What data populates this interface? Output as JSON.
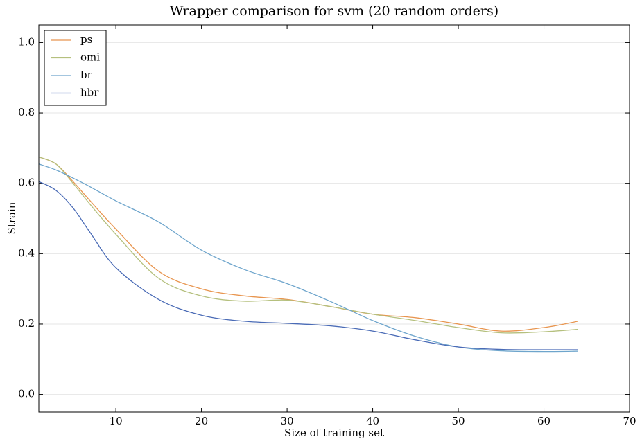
{
  "chart_data": {
    "type": "line",
    "title": "Wrapper comparison for svm (20 random orders)",
    "x_label": "Size of training set",
    "y_label": "Strain",
    "x": [
      1,
      3,
      5,
      7,
      10,
      15,
      20,
      25,
      30,
      35,
      40,
      45,
      50,
      55,
      60,
      64
    ],
    "series": [
      {
        "name": "ps",
        "color": "#e8954f",
        "values": [
          0.675,
          0.655,
          0.605,
          0.55,
          0.47,
          0.35,
          0.3,
          0.28,
          0.27,
          0.25,
          0.228,
          0.218,
          0.2,
          0.18,
          0.19,
          0.208
        ]
      },
      {
        "name": "omi",
        "color": "#b5c07e",
        "values": [
          0.675,
          0.655,
          0.6,
          0.54,
          0.455,
          0.33,
          0.28,
          0.265,
          0.268,
          0.25,
          0.228,
          0.21,
          0.19,
          0.175,
          0.178,
          0.185
        ]
      },
      {
        "name": "br",
        "color": "#6ea5cc",
        "values": [
          0.655,
          0.638,
          0.615,
          0.59,
          0.55,
          0.49,
          0.41,
          0.355,
          0.315,
          0.265,
          0.21,
          0.165,
          0.135,
          0.124,
          0.122,
          0.123
        ]
      },
      {
        "name": "hbr",
        "color": "#4a6bb6",
        "values": [
          0.605,
          0.58,
          0.53,
          0.46,
          0.36,
          0.27,
          0.225,
          0.208,
          0.202,
          0.195,
          0.18,
          0.155,
          0.135,
          0.128,
          0.127,
          0.127
        ]
      }
    ],
    "xlim": [
      1,
      70
    ],
    "ylim": [
      -0.05,
      1.05
    ],
    "xticks": [
      10,
      20,
      30,
      40,
      50,
      60,
      70
    ],
    "yticks": [
      {
        "value": 0,
        "label": "0.0"
      },
      0.2,
      0.4,
      0.6,
      0.8,
      {
        "value": 1,
        "label": "1.0"
      }
    ],
    "grid": true,
    "legend": "upper-left"
  }
}
